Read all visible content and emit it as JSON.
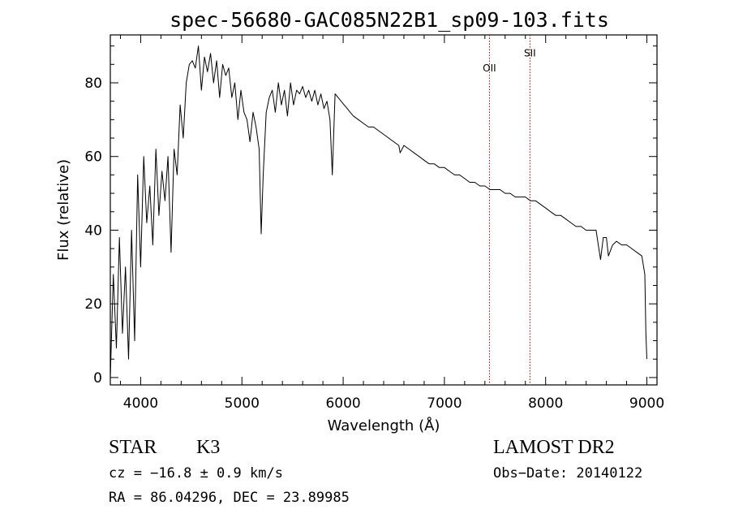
{
  "chart_data": {
    "type": "line",
    "title": "spec-56680-GAC085N22B1_sp09-103.fits",
    "xlabel": "Wavelength (Å)",
    "ylabel": "Flux (relative)",
    "xlim": [
      3700,
      9100
    ],
    "ylim": [
      -2,
      93
    ],
    "xticks": [
      4000,
      5000,
      6000,
      7000,
      8000,
      9000
    ],
    "yticks": [
      0,
      20,
      40,
      60,
      80
    ],
    "xtick_labels": [
      "4000",
      "5000",
      "6000",
      "7000",
      "8000",
      "9000"
    ],
    "ytick_labels": [
      "0",
      "20",
      "40",
      "60",
      "80"
    ],
    "grid": false,
    "series": [
      {
        "x": [
          3700,
          3730,
          3760,
          3790,
          3820,
          3850,
          3880,
          3910,
          3940,
          3970,
          4000,
          4030,
          4060,
          4090,
          4120,
          4150,
          4180,
          4210,
          4240,
          4270,
          4300,
          4330,
          4360,
          4390,
          4420,
          4450,
          4480,
          4510,
          4540,
          4570,
          4600,
          4630,
          4660,
          4690,
          4720,
          4750,
          4780,
          4810,
          4840,
          4870,
          4900,
          4930,
          4960,
          4990,
          5020,
          5050,
          5080,
          5110,
          5140,
          5170,
          5190,
          5210,
          5240,
          5270,
          5300,
          5330,
          5360,
          5390,
          5420,
          5450,
          5480,
          5510,
          5540,
          5570,
          5600,
          5630,
          5660,
          5690,
          5720,
          5750,
          5780,
          5810,
          5840,
          5870,
          5893,
          5920,
          5950,
          5980,
          6010,
          6040,
          6070,
          6100,
          6150,
          6200,
          6250,
          6300,
          6350,
          6400,
          6450,
          6500,
          6550,
          6563,
          6600,
          6650,
          6700,
          6750,
          6800,
          6850,
          6900,
          6950,
          7000,
          7050,
          7100,
          7150,
          7200,
          7250,
          7300,
          7350,
          7400,
          7450,
          7500,
          7550,
          7600,
          7650,
          7700,
          7750,
          7800,
          7850,
          7900,
          7950,
          8000,
          8050,
          8100,
          8150,
          8200,
          8250,
          8300,
          8350,
          8400,
          8450,
          8498,
          8520,
          8542,
          8570,
          8600,
          8620,
          8662,
          8700,
          8750,
          8800,
          8850,
          8900,
          8950,
          8980,
          8990,
          9000
        ],
        "values": [
          0,
          28,
          8,
          38,
          12,
          30,
          5,
          40,
          10,
          55,
          30,
          60,
          42,
          52,
          36,
          62,
          44,
          56,
          48,
          60,
          34,
          62,
          55,
          74,
          65,
          80,
          85,
          86,
          84,
          90,
          78,
          87,
          83,
          88,
          80,
          86,
          76,
          85,
          82,
          84,
          76,
          80,
          70,
          78,
          72,
          70,
          64,
          72,
          68,
          62,
          39,
          55,
          72,
          76,
          78,
          72,
          80,
          74,
          78,
          71,
          80,
          74,
          78,
          77,
          79,
          76,
          78,
          75,
          78,
          74,
          77,
          73,
          75,
          70,
          55,
          77,
          76,
          75,
          74,
          73,
          72,
          71,
          70,
          69,
          68,
          68,
          67,
          66,
          65,
          64,
          63,
          61,
          63,
          62,
          61,
          60,
          59,
          58,
          58,
          57,
          57,
          56,
          55,
          55,
          54,
          53,
          53,
          52,
          52,
          51,
          51,
          51,
          50,
          50,
          49,
          49,
          49,
          48,
          48,
          47,
          46,
          45,
          44,
          44,
          43,
          42,
          41,
          41,
          40,
          40,
          40,
          36,
          32,
          38,
          38,
          33,
          36,
          37,
          36,
          36,
          35,
          34,
          33,
          28,
          12,
          5
        ]
      }
    ],
    "annotations": [
      {
        "x": 7445,
        "label": "OII"
      },
      {
        "x": 7845,
        "label": "SII"
      }
    ],
    "line_color": "#000000",
    "marker_color": "#aa0000"
  },
  "info": {
    "class": "STAR",
    "subclass": "K3",
    "survey": "LAMOST DR2",
    "cz": "cz = −16.8 ± 0.9 km/s",
    "obs_date": "Obs−Date: 20140122",
    "radec": "RA =  86.04296, DEC =  23.89985"
  }
}
